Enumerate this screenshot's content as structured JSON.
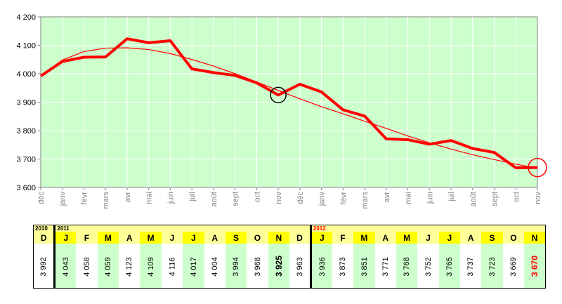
{
  "chart_data": {
    "type": "line",
    "x": [
      "déc",
      "janv",
      "févr",
      "mars",
      "avr",
      "mai",
      "juin",
      "juil",
      "août",
      "sept",
      "oct",
      "nov",
      "déc",
      "janv",
      "févr",
      "mars",
      "avr",
      "mai",
      "juin",
      "juil",
      "août",
      "sept",
      "oct",
      "nov"
    ],
    "series": [
      {
        "values": [
          3992,
          4043,
          4058,
          4059,
          4123,
          4109,
          4116,
          4017,
          4004,
          3994,
          3968,
          3925,
          3963,
          3936,
          3873,
          3851,
          3771,
          3768,
          3752,
          3765,
          3737,
          3723,
          3669,
          3670
        ]
      }
    ],
    "trend": [
      3994,
      4048,
      4078,
      4090,
      4091,
      4085,
      4071,
      4050,
      4027,
      4000,
      3971,
      3941,
      3912,
      3884,
      3859,
      3833,
      3808,
      3781,
      3757,
      3735,
      3715,
      3698,
      3682,
      3668
    ],
    "y_ticks": [
      "3 600",
      "3 700",
      "3 800",
      "3 900",
      "4 000",
      "4 100",
      "4 200"
    ],
    "ylim": [
      3600,
      4200
    ],
    "grid": true,
    "highlighted_points": [
      11,
      23
    ],
    "colors": {
      "plot_bg": "#ccffcc",
      "line": "#ff0000",
      "grid": "#ffffff",
      "year_row": "#ffff99",
      "month_highlight": "#ffff00",
      "value_highlight": "#ccffcc"
    }
  },
  "table": {
    "years": [
      {
        "label": "2010",
        "color": "#000000"
      },
      {
        "label": "2011",
        "color": "#000000"
      },
      {
        "label": "2012",
        "color": "#ff0000"
      }
    ],
    "months": [
      "D",
      "J",
      "F",
      "M",
      "A",
      "M",
      "J",
      "J",
      "A",
      "S",
      "O",
      "N",
      "D",
      "J",
      "F",
      "M",
      "A",
      "M",
      "J",
      "J",
      "A",
      "S",
      "O",
      "N"
    ],
    "values": [
      "3 992",
      "4 043",
      "4 058",
      "4 059",
      "4 123",
      "4 109",
      "4 116",
      "4 017",
      "4 004",
      "3 994",
      "3 968",
      "3 925",
      "3 963",
      "3 936",
      "3 873",
      "3 851",
      "3 771",
      "3 768",
      "3 752",
      "3 765",
      "3 737",
      "3 723",
      "3 669",
      "3 670"
    ]
  }
}
